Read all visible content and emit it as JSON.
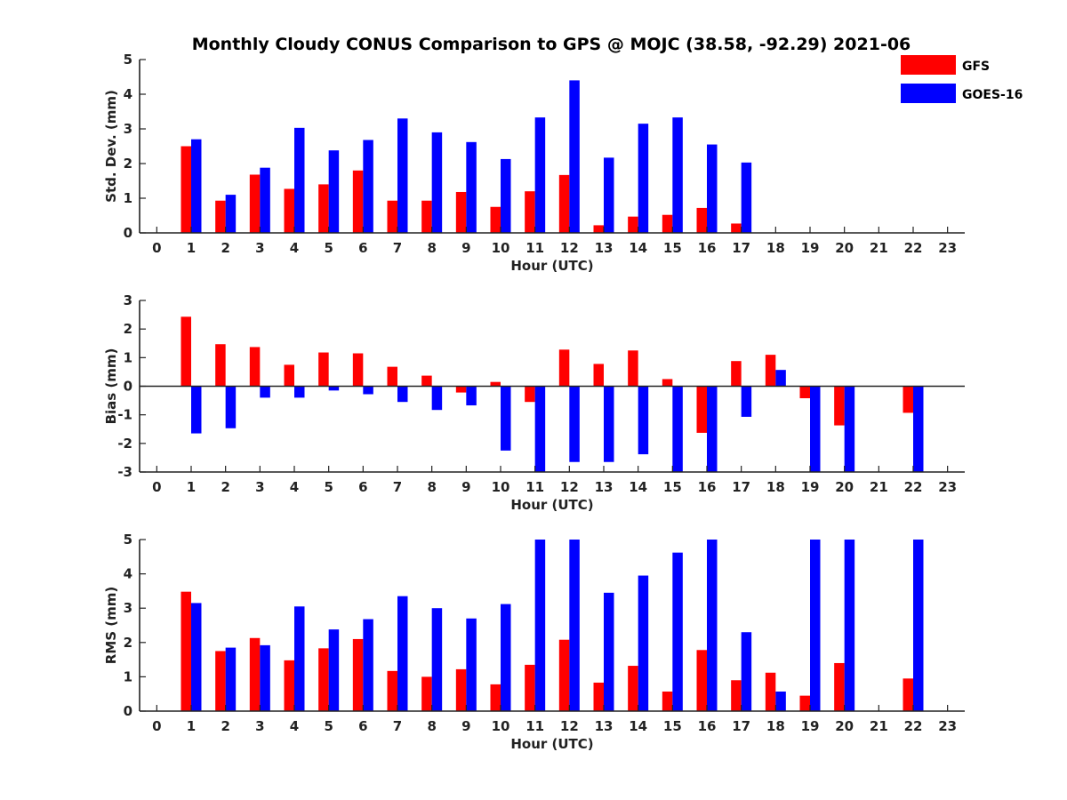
{
  "figure_title": "Monthly Cloudy CONUS Comparison to GPS @ MOJC (38.58, -92.29) 2021-06",
  "legend": [
    {
      "name": "GFS",
      "color": "#ff0000"
    },
    {
      "name": "GOES-16",
      "color": "#0000ff"
    }
  ],
  "chart_data": [
    {
      "type": "bar",
      "title": "Monthly Cloudy CONUS Comparison to GPS @ MOJC (38.58, -92.29) 2021-06",
      "xlabel": "Hour (UTC)",
      "ylabel": "Std. Dev. (mm)",
      "xlim": [
        -0.5,
        23.5
      ],
      "ylim": [
        0,
        5
      ],
      "yticks": [
        0,
        1,
        2,
        3,
        4,
        5
      ],
      "categories": [
        0,
        1,
        2,
        3,
        4,
        5,
        6,
        7,
        8,
        9,
        10,
        11,
        12,
        13,
        14,
        15,
        16,
        17,
        18,
        19,
        20,
        21,
        22,
        23
      ],
      "series": [
        {
          "name": "GFS",
          "color": "#ff0000",
          "values": [
            null,
            2.5,
            0.93,
            1.68,
            1.27,
            1.4,
            1.8,
            0.93,
            0.93,
            1.18,
            0.75,
            1.2,
            1.67,
            0.22,
            0.47,
            0.52,
            0.72,
            0.27,
            null,
            null,
            null,
            null,
            null,
            null
          ]
        },
        {
          "name": "GOES-16",
          "color": "#0000ff",
          "values": [
            null,
            2.7,
            1.1,
            1.88,
            3.03,
            2.38,
            2.68,
            3.3,
            2.9,
            2.62,
            2.13,
            3.33,
            4.4,
            2.17,
            3.15,
            3.33,
            2.55,
            2.03,
            null,
            null,
            null,
            null,
            null,
            null
          ]
        }
      ]
    },
    {
      "type": "bar",
      "title": "",
      "xlabel": "Hour (UTC)",
      "ylabel": "Bias (mm)",
      "xlim": [
        -0.5,
        23.5
      ],
      "ylim": [
        -3,
        3
      ],
      "yticks": [
        -3,
        -2,
        -1,
        0,
        1,
        2,
        3
      ],
      "categories": [
        0,
        1,
        2,
        3,
        4,
        5,
        6,
        7,
        8,
        9,
        10,
        11,
        12,
        13,
        14,
        15,
        16,
        17,
        18,
        19,
        20,
        21,
        22,
        23
      ],
      "series": [
        {
          "name": "GFS",
          "color": "#ff0000",
          "values": [
            null,
            2.43,
            1.47,
            1.37,
            0.75,
            1.18,
            1.15,
            0.68,
            0.37,
            -0.22,
            0.15,
            -0.55,
            1.28,
            0.78,
            1.25,
            0.25,
            -1.63,
            0.88,
            1.1,
            -0.42,
            -1.37,
            null,
            -0.93,
            null
          ]
        },
        {
          "name": "GOES-16",
          "color": "#0000ff",
          "values": [
            null,
            -1.65,
            -1.47,
            -0.4,
            -0.4,
            -0.15,
            -0.28,
            -0.55,
            -0.83,
            -0.67,
            -2.25,
            -3.0,
            -2.65,
            -2.65,
            -2.38,
            -3.0,
            -3.0,
            -1.07,
            0.57,
            -3.0,
            -3.0,
            null,
            -3.0,
            null
          ]
        }
      ]
    },
    {
      "type": "bar",
      "title": "",
      "xlabel": "Hour (UTC)",
      "ylabel": "RMS (mm)",
      "xlim": [
        -0.5,
        23.5
      ],
      "ylim": [
        0,
        5
      ],
      "yticks": [
        0,
        1,
        2,
        3,
        4,
        5
      ],
      "categories": [
        0,
        1,
        2,
        3,
        4,
        5,
        6,
        7,
        8,
        9,
        10,
        11,
        12,
        13,
        14,
        15,
        16,
        17,
        18,
        19,
        20,
        21,
        22,
        23
      ],
      "series": [
        {
          "name": "GFS",
          "color": "#ff0000",
          "values": [
            null,
            3.48,
            1.75,
            2.13,
            1.48,
            1.83,
            2.1,
            1.17,
            1.0,
            1.22,
            0.78,
            1.35,
            2.08,
            0.83,
            1.32,
            0.57,
            1.78,
            0.9,
            1.12,
            0.45,
            1.4,
            null,
            0.95,
            null
          ]
        },
        {
          "name": "GOES-16",
          "color": "#0000ff",
          "values": [
            null,
            3.15,
            1.85,
            1.92,
            3.05,
            2.38,
            2.68,
            3.35,
            3.0,
            2.7,
            3.12,
            5.0,
            5.0,
            3.45,
            3.95,
            4.62,
            5.0,
            2.3,
            0.57,
            5.0,
            5.0,
            null,
            5.0,
            null
          ]
        }
      ]
    }
  ]
}
